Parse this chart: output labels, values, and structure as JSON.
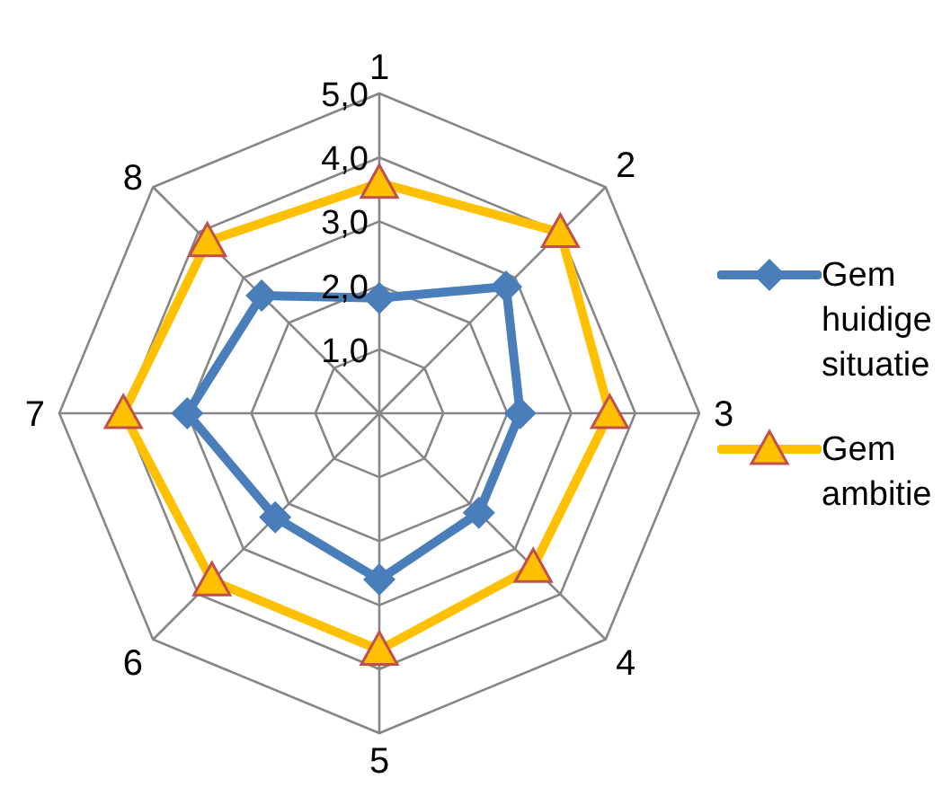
{
  "chart_data": {
    "type": "radar",
    "categories": [
      "1",
      "2",
      "3",
      "4",
      "5",
      "6",
      "7",
      "8"
    ],
    "series": [
      {
        "name": "Gem huidige situatie",
        "color": "#4a7ebb",
        "marker": "diamond",
        "values": [
          1.8,
          2.8,
          2.2,
          2.2,
          2.6,
          2.3,
          3.0,
          2.6
        ]
      },
      {
        "name": "Gem ambitie",
        "color": "#ffc000",
        "marker": "triangle",
        "values": [
          3.6,
          4.0,
          3.6,
          3.4,
          3.7,
          3.7,
          4.0,
          3.8
        ]
      }
    ],
    "ylim": [
      0,
      5
    ],
    "yticks": [
      {
        "value": 1,
        "label": "1,0"
      },
      {
        "value": 2,
        "label": "2,0"
      },
      {
        "value": 3,
        "label": "3,0"
      },
      {
        "value": 4,
        "label": "4,0"
      },
      {
        "value": 5,
        "label": "5,0"
      }
    ],
    "grid": true,
    "legend": "right"
  }
}
